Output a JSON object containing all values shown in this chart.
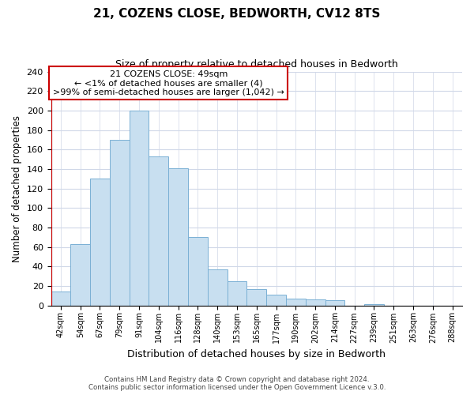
{
  "title": "21, COZENS CLOSE, BEDWORTH, CV12 8TS",
  "subtitle": "Size of property relative to detached houses in Bedworth",
  "xlabel": "Distribution of detached houses by size in Bedworth",
  "ylabel": "Number of detached properties",
  "bar_labels": [
    "42sqm",
    "54sqm",
    "67sqm",
    "79sqm",
    "91sqm",
    "104sqm",
    "116sqm",
    "128sqm",
    "140sqm",
    "153sqm",
    "165sqm",
    "177sqm",
    "190sqm",
    "202sqm",
    "214sqm",
    "227sqm",
    "239sqm",
    "251sqm",
    "263sqm",
    "276sqm",
    "288sqm"
  ],
  "bar_heights": [
    14,
    63,
    130,
    170,
    200,
    153,
    141,
    70,
    37,
    25,
    17,
    11,
    7,
    6,
    5,
    0,
    1,
    0,
    0,
    0,
    0
  ],
  "bar_color": "#c8dff0",
  "bar_edge_color": "#7ab0d4",
  "highlight_color": "#cc0000",
  "annotation_title": "21 COZENS CLOSE: 49sqm",
  "annotation_line1": "← <1% of detached houses are smaller (4)",
  "annotation_line2": ">99% of semi-detached houses are larger (1,042) →",
  "annotation_box_color": "#ffffff",
  "annotation_box_edge": "#cc0000",
  "ylim": [
    0,
    240
  ],
  "yticks": [
    0,
    20,
    40,
    60,
    80,
    100,
    120,
    140,
    160,
    180,
    200,
    220,
    240
  ],
  "footer1": "Contains HM Land Registry data © Crown copyright and database right 2024.",
  "footer2": "Contains public sector information licensed under the Open Government Licence v.3.0.",
  "bg_color": "#ffffff",
  "grid_color": "#d0d8e8"
}
